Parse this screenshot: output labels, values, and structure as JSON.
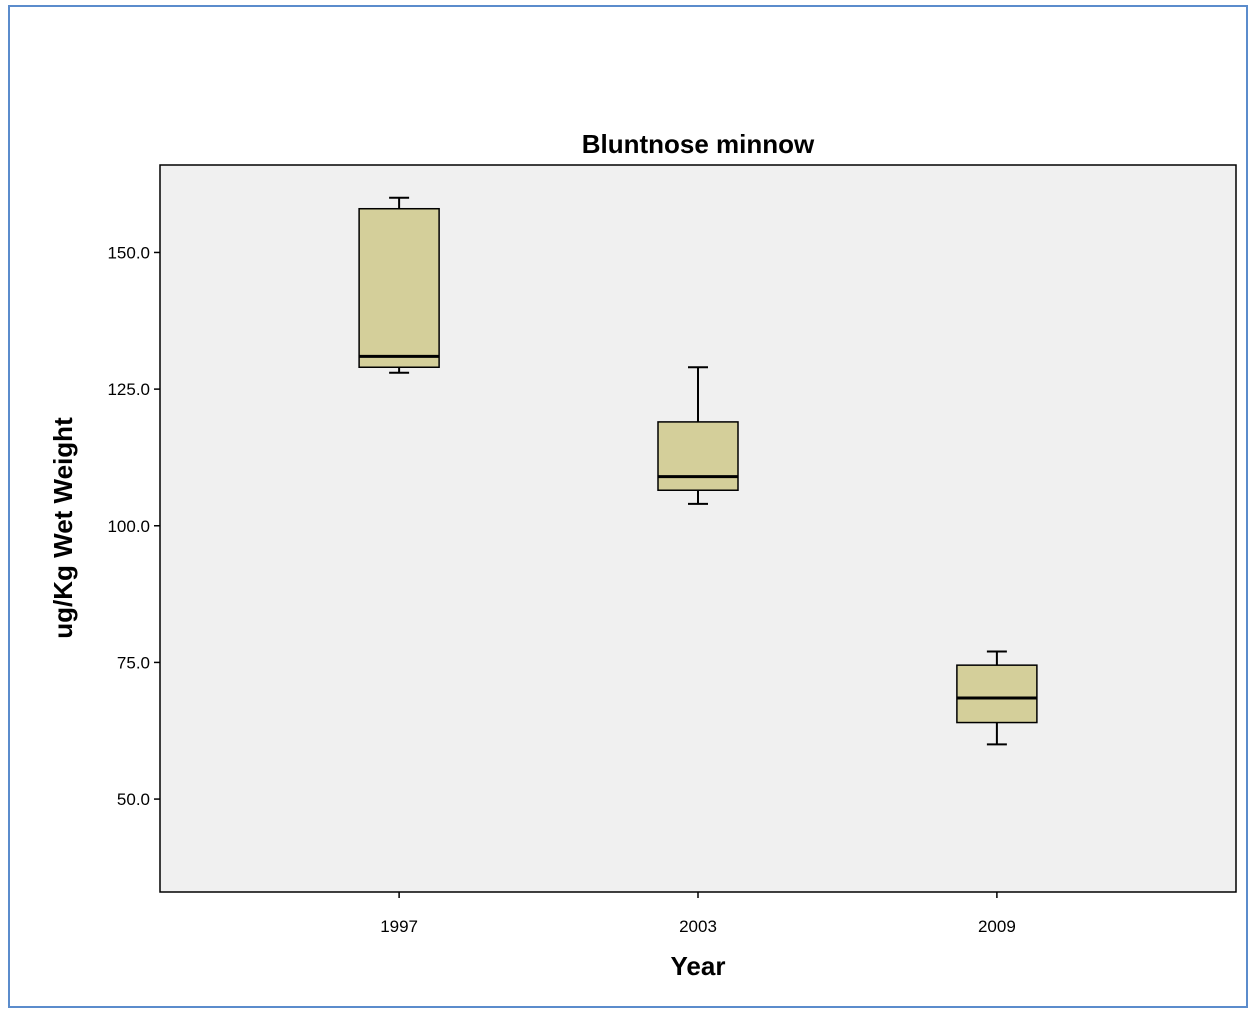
{
  "chart_data": {
    "type": "boxplot",
    "title": "Bluntnose minnow",
    "xlabel": "Year",
    "ylabel": "ug/Kg Wet Weight",
    "categories": [
      "1997",
      "2003",
      "2009"
    ],
    "ylim": [
      33,
      166
    ],
    "yticks": [
      50.0,
      75.0,
      100.0,
      125.0,
      150.0
    ],
    "ytick_labels": [
      "50.0",
      "75.0",
      "100.0",
      "125.0",
      "150.0"
    ],
    "boxes": [
      {
        "category": "1997",
        "whisker_low": 128,
        "q1": 129,
        "median": 131,
        "q3": 158,
        "whisker_high": 160
      },
      {
        "category": "2003",
        "whisker_low": 104,
        "q1": 106.5,
        "median": 109,
        "q3": 119,
        "whisker_high": 129
      },
      {
        "category": "2009",
        "whisker_low": 60,
        "q1": 64,
        "median": 68.5,
        "q3": 74.5,
        "whisker_high": 77
      }
    ],
    "grid": false,
    "colors": {
      "box_fill": "#d4cf9a",
      "plot_background": "#f0f0f0",
      "frame_border": "#5b8ccc"
    }
  }
}
